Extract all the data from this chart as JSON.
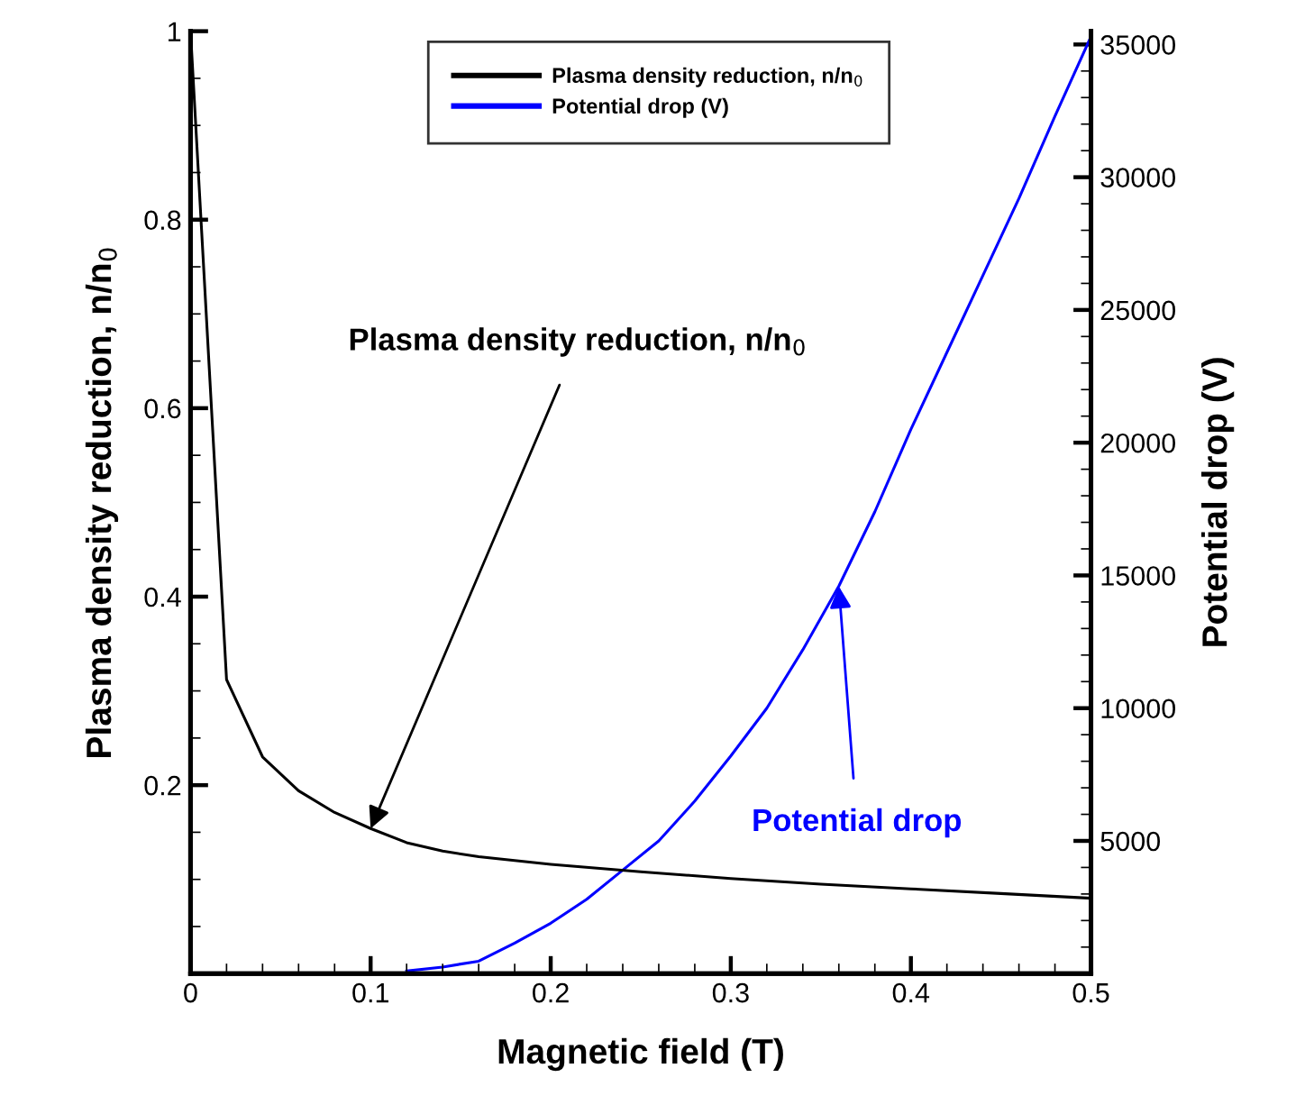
{
  "chart_data": {
    "type": "line",
    "xlabel": "Magnetic field (T)",
    "ylabel": "Plasma density reduction, n/n$_{0}$",
    "y2label": "Potential drop (V)",
    "series": [
      {
        "name": "Plasma density reduction, n/n$_{0}$",
        "color": "#000000",
        "x": [
          0,
          0.02,
          0.04,
          0.06,
          0.08,
          0.1,
          0.12,
          0.14,
          0.16,
          0.2,
          0.25,
          0.3,
          0.35,
          0.4,
          0.45,
          0.5
        ],
        "values": [
          1,
          0.312,
          0.23,
          0.194,
          0.171,
          0.154,
          0.139,
          0.13,
          0.124,
          0.116,
          0.108,
          0.101,
          0.095,
          0.09,
          0.085,
          0.08
        ]
      },
      {
        "name": "Potential drop (V)",
        "color": "#0000ff",
        "axis": "y2",
        "x": [
          0.12,
          0.14,
          0.16,
          0.18,
          0.2,
          0.22,
          0.24,
          0.26,
          0.28,
          0.3,
          0.32,
          0.34,
          0.36,
          0.38,
          0.4,
          0.42,
          0.44,
          0.46,
          0.48,
          0.5
        ],
        "values": [
          100,
          250,
          470,
          1150,
          1900,
          2800,
          3900,
          5000,
          6500,
          8200,
          10000,
          12200,
          14600,
          17400,
          20500,
          23400,
          26300,
          29200,
          32300,
          35300
        ]
      }
    ],
    "xlim": [
      0,
      0.5
    ],
    "xticks": [
      0,
      0.1,
      0.2,
      0.3,
      0.4,
      0.5
    ],
    "ylim": [
      0,
      1
    ],
    "yticks": [
      0.2,
      0.4,
      0.6,
      0.8,
      1
    ],
    "y2lim": [
      0,
      35500
    ],
    "y2ticks": [
      5000,
      10000,
      15000,
      20000,
      25000,
      30000,
      35000
    ],
    "annotations": [
      {
        "text": "Plasma density reduction, n/n$_{0}$",
        "x": 0.1,
        "y": 0.154
      },
      {
        "text": "Potential drop",
        "x": 0.36,
        "y": 0.411
      }
    ],
    "legend": "top",
    "grid": false,
    "line_style": "solid",
    "marker": "none"
  }
}
